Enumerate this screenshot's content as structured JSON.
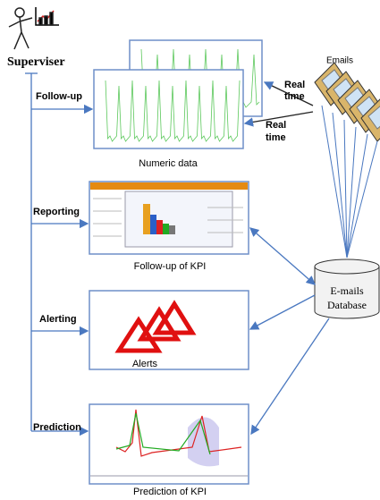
{
  "actor": {
    "label": "Superviser"
  },
  "stages": [
    {
      "label": "Follow-up",
      "caption": "Numeric data"
    },
    {
      "label": "Reporting",
      "caption": "Follow-up of KPI"
    },
    {
      "label": "Alerting",
      "caption": "Alerts"
    },
    {
      "label": "Prediction",
      "caption": "Prediction of KPI"
    }
  ],
  "source": {
    "label": "Emails"
  },
  "flows": [
    {
      "lines": [
        "Real",
        "time"
      ]
    },
    {
      "lines": [
        "Real",
        "time"
      ]
    }
  ],
  "database": {
    "lines": [
      "E-mails",
      "Database"
    ]
  }
}
